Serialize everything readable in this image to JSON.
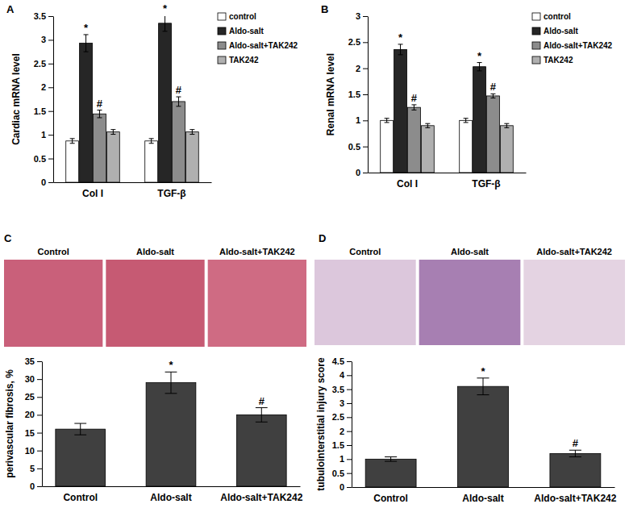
{
  "chart_data": [
    {
      "type": "bar",
      "panel": "A",
      "y_label": "Cardiac mRNA level",
      "categories": [
        "Col I",
        "TGF-β"
      ],
      "series": [
        {
          "name": "control",
          "color": "#ffffff",
          "values": [
            0.87,
            0.87
          ],
          "errors": [
            0.05,
            0.05
          ],
          "annotations": [
            null,
            null
          ]
        },
        {
          "name": "Aldo-salt",
          "color": "#262626",
          "values": [
            2.93,
            3.35
          ],
          "errors": [
            0.18,
            0.17
          ],
          "annotations": [
            "*",
            "*"
          ]
        },
        {
          "name": "Aldo-salt+TAK242",
          "color": "#8c8c8c",
          "values": [
            1.44,
            1.7
          ],
          "errors": [
            0.08,
            0.1
          ],
          "annotations": [
            "#",
            "#"
          ]
        },
        {
          "name": "TAK242",
          "color": "#b0b0b0",
          "values": [
            1.06,
            1.06
          ],
          "errors": [
            0.05,
            0.05
          ],
          "annotations": [
            null,
            null
          ]
        }
      ],
      "ylim": [
        0,
        3.5
      ],
      "yticks": [
        0,
        0.5,
        1,
        1.5,
        2,
        2.5,
        3,
        3.5
      ],
      "legend": "right"
    },
    {
      "type": "bar",
      "panel": "B",
      "y_label": "Renal mRNA level",
      "categories": [
        "Col I",
        "TGF-β"
      ],
      "series": [
        {
          "name": "control",
          "color": "#ffffff",
          "values": [
            1.0,
            1.0
          ],
          "errors": [
            0.04,
            0.04
          ],
          "annotations": [
            null,
            null
          ]
        },
        {
          "name": "Aldo-salt",
          "color": "#262626",
          "values": [
            2.36,
            2.03
          ],
          "errors": [
            0.1,
            0.08
          ],
          "annotations": [
            "*",
            "*"
          ]
        },
        {
          "name": "Aldo-salt+TAK242",
          "color": "#8c8c8c",
          "values": [
            1.25,
            1.47
          ],
          "errors": [
            0.05,
            0.04
          ],
          "annotations": [
            "#",
            "#"
          ]
        },
        {
          "name": "TAK242",
          "color": "#b0b0b0",
          "values": [
            0.9,
            0.9
          ],
          "errors": [
            0.04,
            0.04
          ],
          "annotations": [
            null,
            null
          ]
        }
      ],
      "ylim": [
        0,
        3
      ],
      "yticks": [
        0,
        0.5,
        1,
        1.5,
        2,
        2.5,
        3
      ],
      "legend": "right"
    },
    {
      "type": "bar",
      "panel": "C",
      "y_label": "perivascular fibrosis, %",
      "image_labels": [
        "Control",
        "Aldo-salt",
        "Aldo-salt+TAK242"
      ],
      "categories": [
        "Control",
        "Aldo-salt",
        "Aldo-salt+TAK242"
      ],
      "values": [
        16,
        29,
        20
      ],
      "errors": [
        1.6,
        3,
        2
      ],
      "annotations": [
        null,
        "*",
        "#"
      ],
      "color": "#404040",
      "ylim": [
        0,
        35
      ],
      "yticks": [
        0,
        5,
        10,
        15,
        20,
        25,
        30,
        35
      ]
    },
    {
      "type": "bar",
      "panel": "D",
      "y_label": "tubulointerstitial injury score",
      "image_labels": [
        "Control",
        "Aldo-salt",
        "Aldo-salt+TAK242"
      ],
      "categories": [
        "Control",
        "Aldo-salt",
        "Aldo-salt+TAK242"
      ],
      "values": [
        1.0,
        3.6,
        1.2
      ],
      "errors": [
        0.08,
        0.3,
        0.12
      ],
      "annotations": [
        null,
        "*",
        "#"
      ],
      "color": "#404040",
      "ylim": [
        0,
        4.5
      ],
      "yticks": [
        0,
        0.5,
        1,
        1.5,
        2,
        2.5,
        3,
        3.5,
        4,
        4.5
      ]
    }
  ]
}
